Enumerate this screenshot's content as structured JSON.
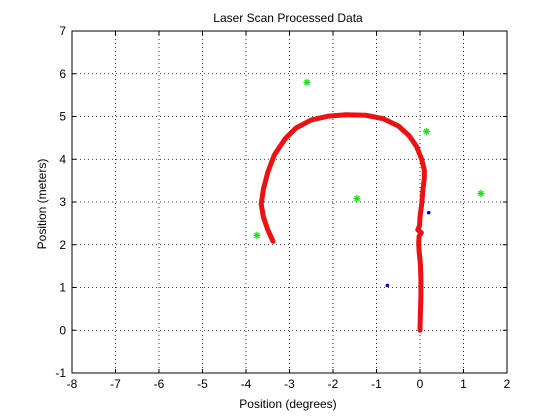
{
  "chart_data": {
    "type": "scatter",
    "title": "Laser Scan Processed Data",
    "xlabel": "Position (degrees)",
    "ylabel": "Position (meters)",
    "xlim": [
      -8,
      2
    ],
    "ylim": [
      -1,
      7
    ],
    "xticks": [
      -8,
      -7,
      -6,
      -5,
      -4,
      -3,
      -2,
      -1,
      0,
      1,
      2
    ],
    "yticks": [
      -1,
      0,
      1,
      2,
      3,
      4,
      5,
      6,
      7
    ],
    "grid": true,
    "colors": {
      "path": "#ee1111",
      "landmarks": "#22dd22",
      "detections": "#0000cc"
    },
    "series": [
      {
        "kind": "line",
        "color": "#ee1111",
        "points": [
          [
            0,
            0
          ],
          [
            0.01,
            0.4
          ],
          [
            0.02,
            0.8
          ],
          [
            0.02,
            1.2
          ],
          [
            0.01,
            1.55
          ],
          [
            -0.02,
            1.85
          ],
          [
            -0.03,
            2.05
          ],
          [
            -0.02,
            2.2
          ],
          [
            0.03,
            2.28
          ],
          [
            -0.05,
            2.35
          ],
          [
            -0.01,
            2.45
          ],
          [
            0.0,
            2.65
          ],
          [
            0.04,
            2.95
          ],
          [
            0.07,
            3.3
          ],
          [
            0.1,
            3.55
          ],
          [
            0.1,
            3.75
          ],
          [
            0.04,
            4.0
          ],
          [
            -0.08,
            4.3
          ],
          [
            -0.25,
            4.55
          ],
          [
            -0.5,
            4.78
          ],
          [
            -0.85,
            4.95
          ],
          [
            -1.25,
            5.03
          ],
          [
            -1.7,
            5.04
          ],
          [
            -2.1,
            5.01
          ],
          [
            -2.5,
            4.92
          ],
          [
            -2.85,
            4.73
          ],
          [
            -3.1,
            4.48
          ],
          [
            -3.35,
            4.1
          ],
          [
            -3.5,
            3.7
          ],
          [
            -3.6,
            3.3
          ],
          [
            -3.65,
            2.95
          ],
          [
            -3.6,
            2.65
          ],
          [
            -3.5,
            2.35
          ],
          [
            -3.38,
            2.08
          ]
        ]
      },
      {
        "kind": "scatter",
        "marker": "star",
        "color": "#22dd22",
        "points": [
          [
            -2.6,
            5.8
          ],
          [
            0.15,
            4.65
          ],
          [
            -1.45,
            3.08
          ],
          [
            1.4,
            3.2
          ],
          [
            -3.75,
            2.22
          ]
        ]
      },
      {
        "kind": "scatter",
        "marker": "dot",
        "color": "#0000cc",
        "points": [
          [
            0.2,
            2.75
          ],
          [
            -0.75,
            1.05
          ]
        ]
      }
    ]
  }
}
